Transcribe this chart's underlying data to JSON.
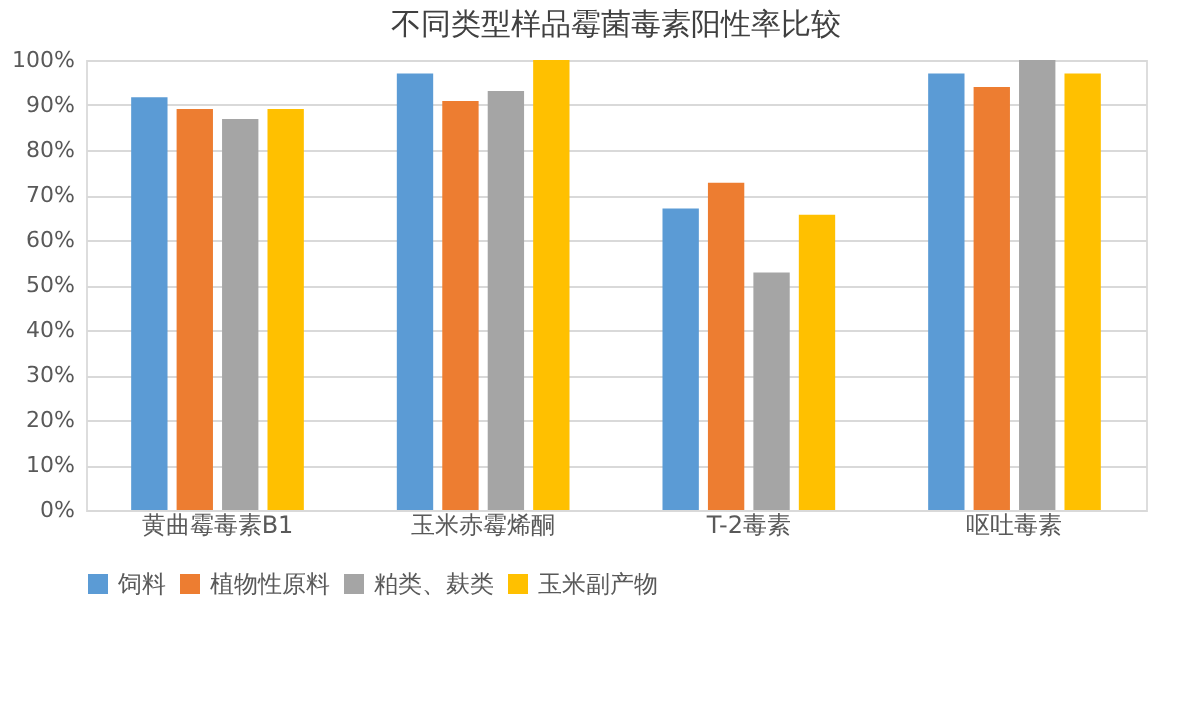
{
  "chart_data": {
    "type": "bar",
    "title": "不同类型样品霉菌毒素阳性率比较",
    "categories": [
      "黄曲霉毒素B1",
      "玉米赤霉烯酮",
      "T-2毒素",
      "呕吐毒素"
    ],
    "series": [
      {
        "name": "饲料",
        "color": "#5b9bd5",
        "values": [
          91.7,
          97,
          67,
          97
        ]
      },
      {
        "name": "植物性原料",
        "color": "#ed7d31",
        "values": [
          89.1,
          90.9,
          72.7,
          94
        ]
      },
      {
        "name": "粕类、麸类",
        "color": "#a5a5a5",
        "values": [
          86.9,
          93.1,
          52.8,
          100
        ]
      },
      {
        "name": "玉米副产物",
        "color": "#ffc000",
        "values": [
          89.1,
          100,
          65.6,
          97
        ]
      }
    ],
    "ylim": [
      0,
      100
    ],
    "yticks": [
      {
        "value": 0,
        "label": "0%"
      },
      {
        "value": 10,
        "label": "10%"
      },
      {
        "value": 20,
        "label": "20%"
      },
      {
        "value": 30,
        "label": "30%"
      },
      {
        "value": 40,
        "label": "40%"
      },
      {
        "value": 50,
        "label": "50%"
      },
      {
        "value": 60,
        "label": "60%"
      },
      {
        "value": 70,
        "label": "70%"
      },
      {
        "value": 80,
        "label": "80%"
      },
      {
        "value": 90,
        "label": "90%"
      },
      {
        "value": 100,
        "label": "100%"
      }
    ],
    "grid": "y",
    "legend": "bottom"
  }
}
